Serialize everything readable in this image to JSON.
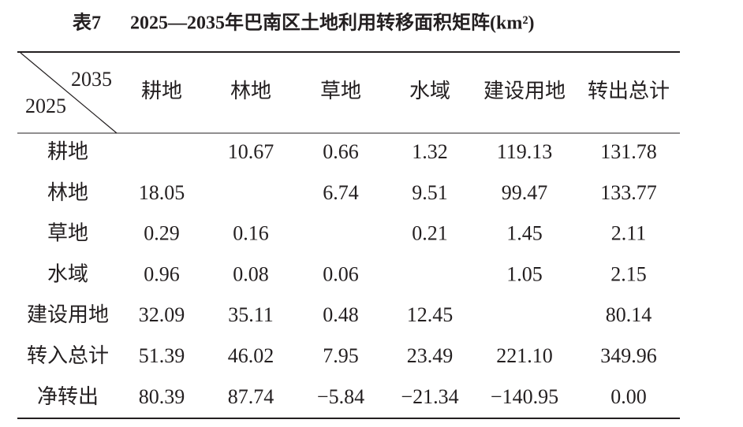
{
  "title": {
    "label": "表7",
    "text": "2025—2035年巴南区土地利用转移面积矩阵(km²)"
  },
  "table": {
    "corner": {
      "column_year": "2035",
      "row_year": "2025"
    },
    "columns": [
      "耕地",
      "林地",
      "草地",
      "水域",
      "建设用地",
      "转出总计"
    ],
    "rows": [
      {
        "label": "耕地",
        "cells": [
          null,
          "10.67",
          "0.66",
          "1.32",
          "119.13",
          "131.78"
        ]
      },
      {
        "label": "林地",
        "cells": [
          "18.05",
          null,
          "6.74",
          "9.51",
          "99.47",
          "133.77"
        ]
      },
      {
        "label": "草地",
        "cells": [
          "0.29",
          "0.16",
          null,
          "0.21",
          "1.45",
          "2.11"
        ]
      },
      {
        "label": "水域",
        "cells": [
          "0.96",
          "0.08",
          "0.06",
          null,
          "1.05",
          "2.15"
        ]
      },
      {
        "label": "建设用地",
        "cells": [
          "32.09",
          "35.11",
          "0.48",
          "12.45",
          null,
          "80.14"
        ]
      },
      {
        "label": "转入总计",
        "cells": [
          "51.39",
          "46.02",
          "7.95",
          "23.49",
          "221.10",
          "349.96"
        ]
      },
      {
        "label": "净转出",
        "cells": [
          "80.39",
          "87.74",
          "−5.84",
          "−21.34",
          "−140.95",
          "0.00"
        ]
      }
    ]
  }
}
